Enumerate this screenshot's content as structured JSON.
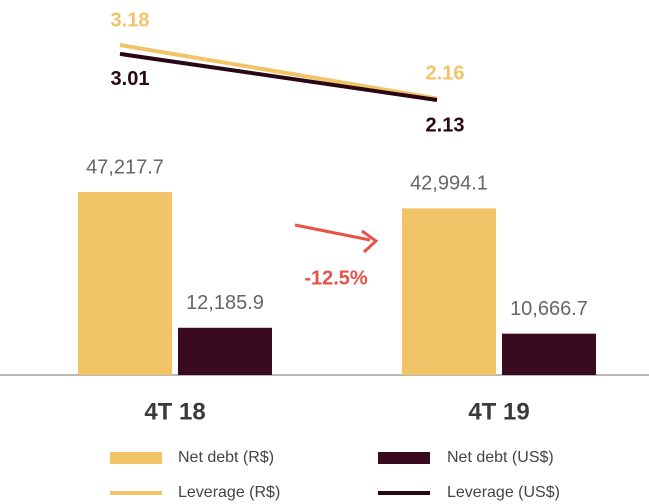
{
  "chart_data": {
    "type": "bar",
    "categories": [
      "4T 18",
      "4T 19"
    ],
    "series": [
      {
        "name": "Net debt (R$)",
        "type": "bar",
        "color": "#f1c467",
        "values": [
          47217.7,
          42994.1
        ],
        "value_labels": [
          "47,217.7",
          "42,994.1"
        ]
      },
      {
        "name": "Net debt (US$)",
        "type": "bar",
        "color": "#3a0a1f",
        "values": [
          12185.9,
          10666.7
        ],
        "value_labels": [
          "12,185.9",
          "10,666.7"
        ]
      },
      {
        "name": "Leverage (R$)",
        "type": "line",
        "color": "#f1c467",
        "values": [
          3.18,
          2.16
        ]
      },
      {
        "name": "Leverage (US$)",
        "type": "line",
        "color": "#2a0715",
        "values": [
          3.01,
          2.13
        ]
      }
    ],
    "annotation": "-12.5%"
  }
}
